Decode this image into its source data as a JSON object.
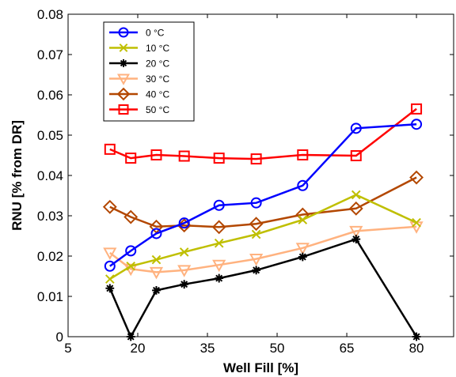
{
  "chart_data": {
    "type": "line",
    "xlabel": "Well Fill [%]",
    "ylabel": "RNU [% from DR]",
    "xlim": [
      5,
      88
    ],
    "ylim": [
      0,
      0.08
    ],
    "xticks": [
      5,
      20,
      35,
      50,
      65,
      80
    ],
    "xtick_labels": [
      "5",
      "20",
      "35",
      "50",
      "65",
      "80"
    ],
    "yticks": [
      0,
      0.01,
      0.02,
      0.03,
      0.04,
      0.05,
      0.06,
      0.07,
      0.08
    ],
    "ytick_labels": [
      "0",
      "0.01",
      "0.02",
      "0.03",
      "0.04",
      "0.05",
      "0.06",
      "0.07",
      "0.08"
    ],
    "grid": false,
    "legend_position": "top-left",
    "x": [
      14,
      18.5,
      24,
      30,
      37.5,
      45.5,
      55.5,
      67,
      80
    ],
    "series": [
      {
        "name": "0 °C",
        "color": "#0000ff",
        "marker": "circle",
        "values": [
          0.0175,
          0.0213,
          0.0256,
          0.0282,
          0.0326,
          0.0332,
          0.0375,
          0.0517,
          0.0527
        ]
      },
      {
        "name": "10 °C",
        "color": "#bfbf00",
        "marker": "x",
        "values": [
          0.0143,
          0.0175,
          0.0191,
          0.021,
          0.0232,
          0.0254,
          0.029,
          0.0352,
          0.0283
        ]
      },
      {
        "name": "20 °C",
        "color": "#000000",
        "marker": "asterisk",
        "values": [
          0.012,
          0.0,
          0.0115,
          0.013,
          0.0145,
          0.0165,
          0.0198,
          0.0242,
          0.0
        ]
      },
      {
        "name": "30 °C",
        "color": "#ffb27f",
        "marker": "triangle-down",
        "values": [
          0.0208,
          0.0168,
          0.016,
          0.0165,
          0.0178,
          0.0193,
          0.022,
          0.0262,
          0.0273
        ]
      },
      {
        "name": "40 °C",
        "color": "#b34700",
        "marker": "diamond",
        "values": [
          0.0322,
          0.0297,
          0.0273,
          0.0276,
          0.0272,
          0.028,
          0.0303,
          0.0318,
          0.0395
        ]
      },
      {
        "name": "50 °C",
        "color": "#ff0000",
        "marker": "square",
        "values": [
          0.0465,
          0.0443,
          0.0451,
          0.0448,
          0.0443,
          0.0441,
          0.0451,
          0.0449,
          0.0565
        ]
      }
    ]
  }
}
